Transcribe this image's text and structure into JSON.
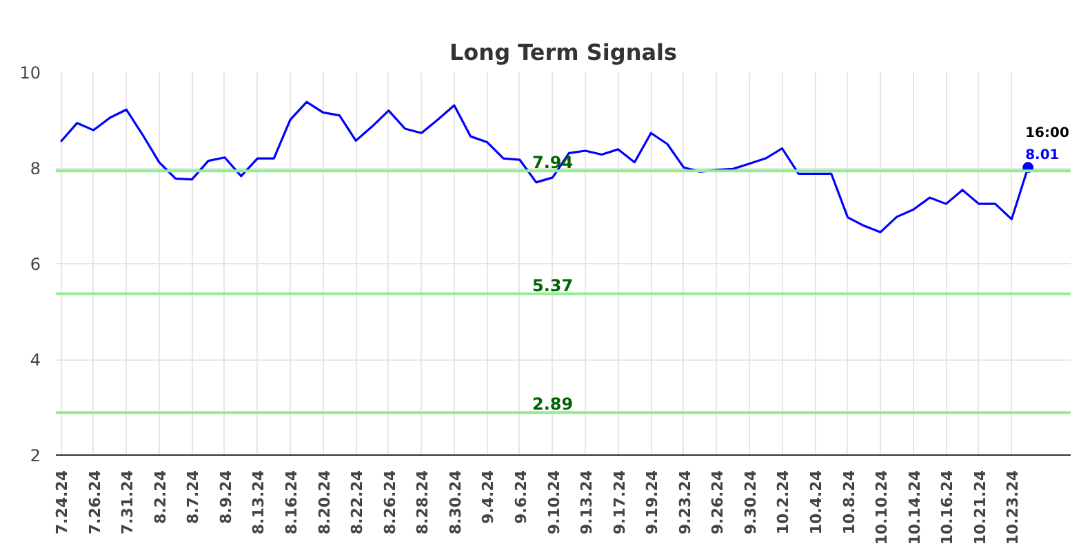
{
  "chart_data": {
    "type": "line",
    "title": "Long Term Signals",
    "categories": [
      "7.24.24",
      null,
      "7.26.24",
      null,
      "7.31.24",
      null,
      "8.2.24",
      null,
      "8.7.24",
      null,
      "8.9.24",
      null,
      "8.13.24",
      null,
      "8.16.24",
      null,
      "8.20.24",
      null,
      "8.22.24",
      null,
      "8.26.24",
      null,
      "8.28.24",
      null,
      "8.30.24",
      null,
      "9.4.24",
      null,
      "9.6.24",
      null,
      "9.10.24",
      null,
      "9.13.24",
      null,
      "9.17.24",
      null,
      "9.19.24",
      null,
      "9.23.24",
      null,
      "9.26.24",
      null,
      "9.30.24",
      null,
      "10.2.24",
      null,
      "10.4.24",
      null,
      "10.8.24",
      null,
      "10.10.24",
      null,
      "10.14.24",
      null,
      "10.16.24",
      null,
      "10.21.24",
      null,
      "10.23.24",
      null
    ],
    "series": [
      {
        "color": "#0000ff",
        "values": [
          8.55,
          8.94,
          8.79,
          9.05,
          9.22,
          8.69,
          8.12,
          7.78,
          7.76,
          8.15,
          8.22,
          7.83,
          8.2,
          8.2,
          9.01,
          9.38,
          9.16,
          9.1,
          8.57,
          8.87,
          9.2,
          8.82,
          8.73,
          9.01,
          9.31,
          8.66,
          8.54,
          8.2,
          8.17,
          7.7,
          7.8,
          8.31,
          8.36,
          8.28,
          8.39,
          8.12,
          8.73,
          8.5,
          8.01,
          7.92,
          7.96,
          7.98,
          8.09,
          8.2,
          8.41,
          7.88,
          7.88,
          7.88,
          6.97,
          6.79,
          6.66,
          6.98,
          7.13,
          7.38,
          7.25,
          7.54,
          7.25,
          7.25,
          6.93,
          8.01
        ],
        "value_labels": [
          null,
          null,
          null,
          null,
          null,
          null,
          null,
          null,
          null,
          null,
          null,
          null,
          null,
          null,
          null,
          null,
          null,
          null,
          null,
          null,
          null,
          null,
          null,
          null,
          null,
          null,
          null,
          null,
          null,
          null,
          null,
          null,
          null,
          null,
          null,
          null,
          null,
          null,
          null,
          null,
          null,
          null,
          null,
          null,
          null,
          null,
          null,
          null,
          null,
          null,
          null,
          null,
          null,
          null,
          null,
          null,
          null,
          null,
          null,
          "8.01"
        ]
      }
    ],
    "ylim": [
      2,
      10
    ],
    "yticks": [
      2,
      4,
      6,
      8,
      10
    ],
    "grid": true,
    "ref_lines": [
      {
        "axis": "y",
        "value": 7.94,
        "label": "7.94",
        "color": "#90ee90"
      },
      {
        "axis": "y",
        "value": 5.37,
        "label": "5.37",
        "color": "#90ee90"
      },
      {
        "axis": "y",
        "value": 2.89,
        "label": "2.89",
        "color": "#90ee90"
      }
    ],
    "annotations": [
      "16:00"
    ]
  }
}
